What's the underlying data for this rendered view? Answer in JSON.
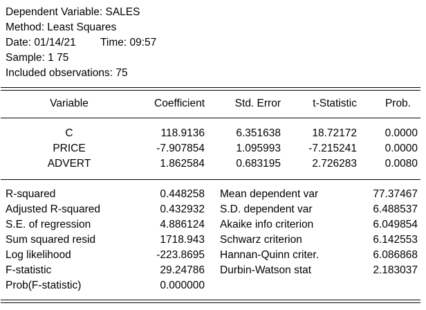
{
  "header": {
    "dependent": "Dependent Variable: SALES",
    "method": "Method: Least Squares",
    "date": "Date: 01/14/21",
    "time": "Time: 09:57",
    "sample": "Sample: 1 75",
    "observations": "Included observations: 75"
  },
  "columns": [
    "Variable",
    "Coefficient",
    "Std. Error",
    "t-Statistic",
    "Prob."
  ],
  "coefficients": [
    {
      "variable": "C",
      "coefficient": "118.9136",
      "std_error": "6.351638",
      "t_statistic": "18.72172",
      "prob": "0.0000"
    },
    {
      "variable": "PRICE",
      "coefficient": "-7.907854",
      "std_error": "1.095993",
      "t_statistic": "-7.215241",
      "prob": "0.0000"
    },
    {
      "variable": "ADVERT",
      "coefficient": "1.862584",
      "std_error": "0.683195",
      "t_statistic": "2.726283",
      "prob": "0.0080"
    }
  ],
  "stats_left": [
    {
      "label": "R-squared",
      "value": "0.448258"
    },
    {
      "label": "Adjusted R-squared",
      "value": "0.432932"
    },
    {
      "label": "S.E. of regression",
      "value": "4.886124"
    },
    {
      "label": "Sum squared resid",
      "value": "1718.943"
    },
    {
      "label": "Log likelihood",
      "value": "-223.8695"
    },
    {
      "label": "F-statistic",
      "value": "29.24786"
    },
    {
      "label": "Prob(F-statistic)",
      "value": "0.000000"
    }
  ],
  "stats_right": [
    {
      "label": "Mean dependent var",
      "value": "77.37467"
    },
    {
      "label": "S.D. dependent var",
      "value": "6.488537"
    },
    {
      "label": "Akaike info criterion",
      "value": "6.049854"
    },
    {
      "label": "Schwarz criterion",
      "value": "6.142553"
    },
    {
      "label": "Hannan-Quinn criter.",
      "value": "6.086868"
    },
    {
      "label": "Durbin-Watson stat",
      "value": "2.183037"
    }
  ]
}
